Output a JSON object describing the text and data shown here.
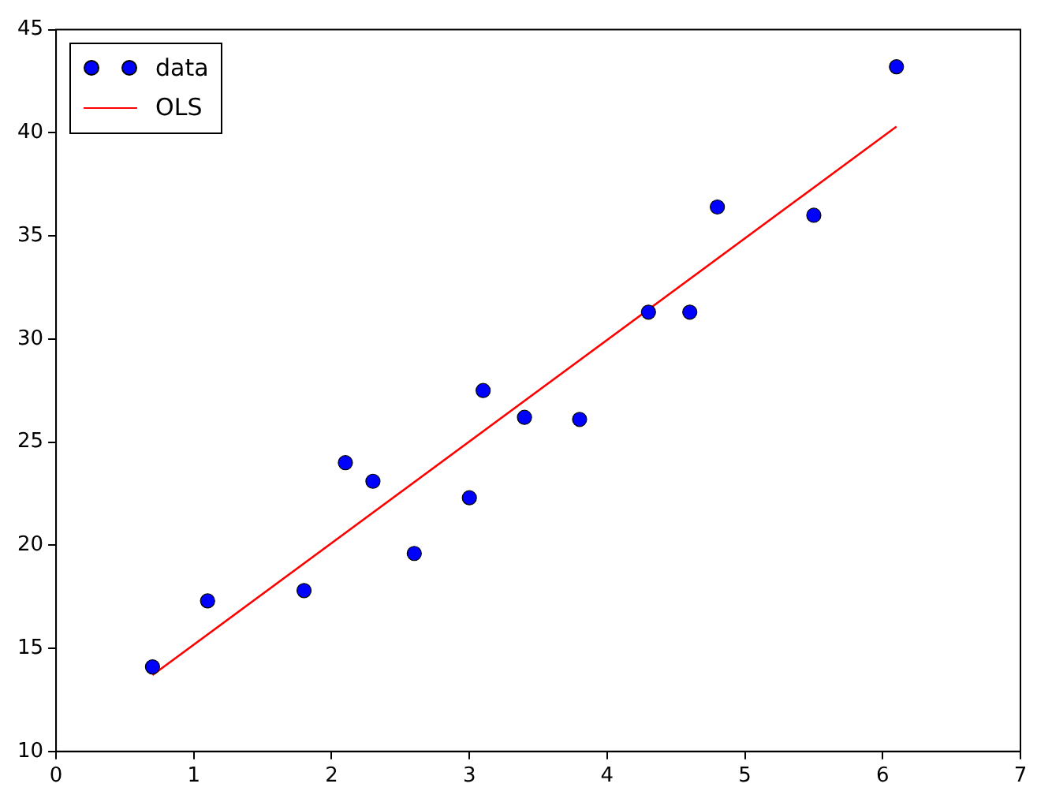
{
  "chart_data": {
    "type": "scatter",
    "series": [
      {
        "name": "data",
        "type": "scatter",
        "color": "#0000ff",
        "x": [
          0.7,
          1.1,
          1.8,
          2.1,
          2.3,
          2.6,
          3.0,
          3.1,
          3.4,
          3.8,
          4.3,
          4.6,
          4.8,
          5.5,
          6.1
        ],
        "values": [
          14.1,
          17.3,
          17.8,
          24.0,
          23.1,
          19.6,
          22.3,
          27.5,
          26.2,
          26.1,
          31.3,
          31.3,
          36.4,
          36.0,
          43.2
        ],
        "marker": "circle"
      },
      {
        "name": "OLS",
        "type": "line",
        "color": "#ff0000",
        "x": [
          0.7,
          6.1
        ],
        "values": [
          13.7,
          40.3
        ],
        "marker": "none",
        "line_style": "solid"
      }
    ],
    "xlim": [
      0,
      7
    ],
    "xticks": [
      0,
      1,
      2,
      3,
      4,
      5,
      6,
      7
    ],
    "ylim": [
      10,
      45
    ],
    "yticks": [
      10,
      15,
      20,
      25,
      30,
      35,
      40,
      45
    ],
    "grid": false,
    "legend": "top left"
  }
}
